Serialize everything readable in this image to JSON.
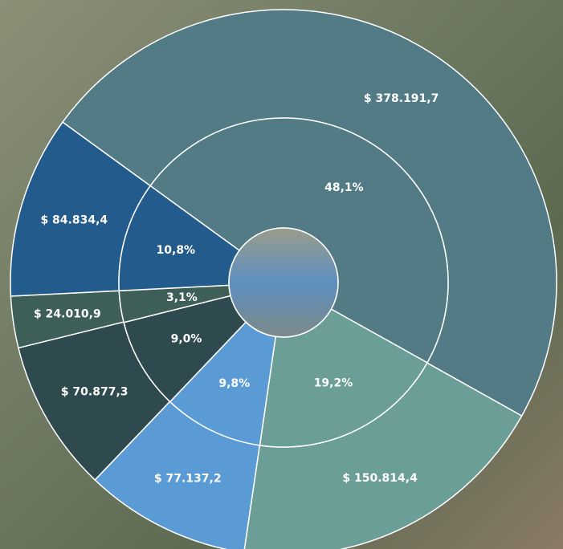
{
  "chart_data": {
    "type": "sunburst",
    "values": [
      378191.7,
      150814.4,
      77137.2,
      70877.3,
      24010.9,
      84834.4
    ],
    "value_labels": [
      "$ 378.191,7",
      "$ 150.814,4",
      "$ 77.137,2",
      "$ 70.877,3",
      "$ 24.010,9",
      "$ 84.834,4"
    ],
    "shares": [
      48.1,
      19.2,
      9.8,
      9.0,
      3.1,
      10.8
    ],
    "share_labels": [
      "48,1%",
      "19,2%",
      "9,8%",
      "9,0%",
      "3,1%",
      "10,8%"
    ],
    "colors": [
      "#527b86",
      "#6a9e96",
      "#5b9bd5",
      "#2f4a4f",
      "#3e5f58",
      "#235b8c"
    ]
  }
}
